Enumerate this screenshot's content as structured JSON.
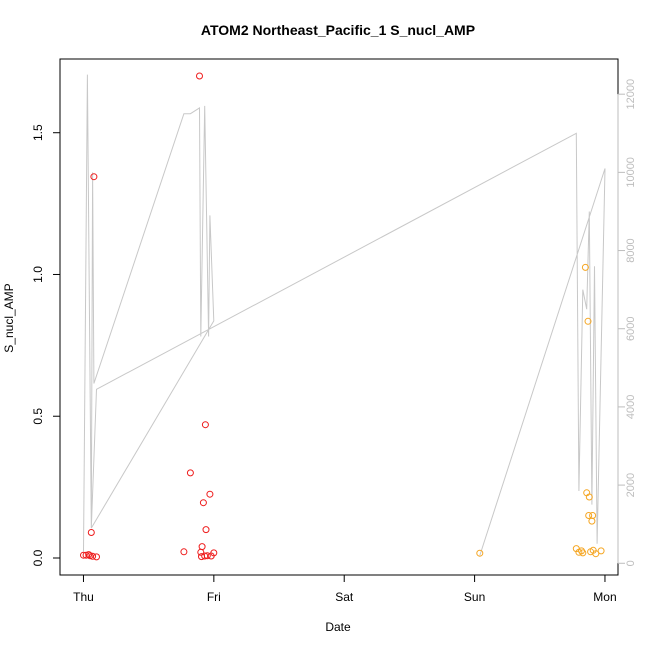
{
  "chart_data": {
    "type": "scatter",
    "title": "ATOM2 Northeast_Pacific_1 S_nucl_AMP",
    "xlabel": "Date",
    "ylabel": "S_nucl_AMP",
    "x_ticks": [
      "Thu",
      "Fri",
      "Sat",
      "Sun",
      "Mon"
    ],
    "xlim": [
      -0.18,
      4.1
    ],
    "ylim": [
      -0.06,
      1.76
    ],
    "y_ticks": [
      "0.0",
      "0.5",
      "1.0",
      "1.5"
    ],
    "y_tick_values": [
      0,
      0.5,
      1.0,
      1.5
    ],
    "y2lim": [
      -300,
      12900
    ],
    "y2_ticks": [
      "0",
      "2000",
      "4000",
      "6000",
      "8000",
      "10000",
      "12000"
    ],
    "y2_tick_values": [
      0,
      2000,
      4000,
      6000,
      8000,
      10000,
      12000
    ],
    "colors": {
      "series_a": "#ee1c1c",
      "series_b": "#f5a623",
      "altitude_line": "#c8c8c8",
      "axis": "#000000",
      "right_axis": "#bdbdbd"
    },
    "series": [
      {
        "color": "#ee1c1c",
        "points": [
          [
            0.0,
            0.01
          ],
          [
            0.02,
            0.01
          ],
          [
            0.04,
            0.012
          ],
          [
            0.05,
            0.008
          ],
          [
            0.06,
            0.09
          ],
          [
            0.07,
            0.006
          ],
          [
            0.08,
            1.345
          ],
          [
            0.1,
            0.004
          ],
          [
            0.77,
            0.022
          ],
          [
            0.82,
            0.3
          ],
          [
            0.89,
            1.7
          ],
          [
            0.9,
            0.02
          ],
          [
            0.905,
            0.005
          ],
          [
            0.91,
            0.04
          ],
          [
            0.92,
            0.195
          ],
          [
            0.93,
            0.007
          ],
          [
            0.935,
            0.47
          ],
          [
            0.94,
            0.1
          ],
          [
            0.95,
            0.008
          ],
          [
            0.97,
            0.225
          ],
          [
            0.98,
            0.007
          ],
          [
            1.0,
            0.018
          ]
        ]
      },
      {
        "color": "#f5a623",
        "points": [
          [
            3.04,
            0.017
          ],
          [
            3.78,
            0.033
          ],
          [
            3.8,
            0.02
          ],
          [
            3.82,
            0.025
          ],
          [
            3.83,
            0.018
          ],
          [
            3.85,
            1.025
          ],
          [
            3.86,
            0.23
          ],
          [
            3.87,
            0.835
          ],
          [
            3.875,
            0.15
          ],
          [
            3.88,
            0.215
          ],
          [
            3.89,
            0.022
          ],
          [
            3.9,
            0.13
          ],
          [
            3.905,
            0.15
          ],
          [
            3.91,
            0.027
          ],
          [
            3.93,
            0.015
          ],
          [
            3.97,
            0.025
          ]
        ]
      }
    ],
    "altitude_line": {
      "axis": "right",
      "points": [
        [
          0.0,
          300
        ],
        [
          0.03,
          12500
        ],
        [
          0.06,
          900
        ],
        [
          0.07,
          10000
        ],
        [
          0.08,
          4600
        ],
        [
          0.77,
          11500
        ],
        [
          0.82,
          11500
        ],
        [
          0.89,
          11650
        ],
        [
          0.9,
          5800
        ],
        [
          0.93,
          11700
        ],
        [
          0.96,
          5800
        ],
        [
          0.97,
          8900
        ],
        [
          1.0,
          6200
        ],
        [
          0.06,
          900
        ],
        [
          0.1,
          4450
        ],
        [
          3.78,
          11000
        ],
        [
          3.8,
          1850
        ],
        [
          3.83,
          7000
        ],
        [
          3.86,
          6500
        ],
        [
          3.88,
          9000
        ],
        [
          3.9,
          1500
        ],
        [
          3.92,
          7600
        ],
        [
          3.94,
          500
        ],
        [
          4.0,
          10100
        ],
        [
          3.04,
          200
        ]
      ]
    }
  }
}
